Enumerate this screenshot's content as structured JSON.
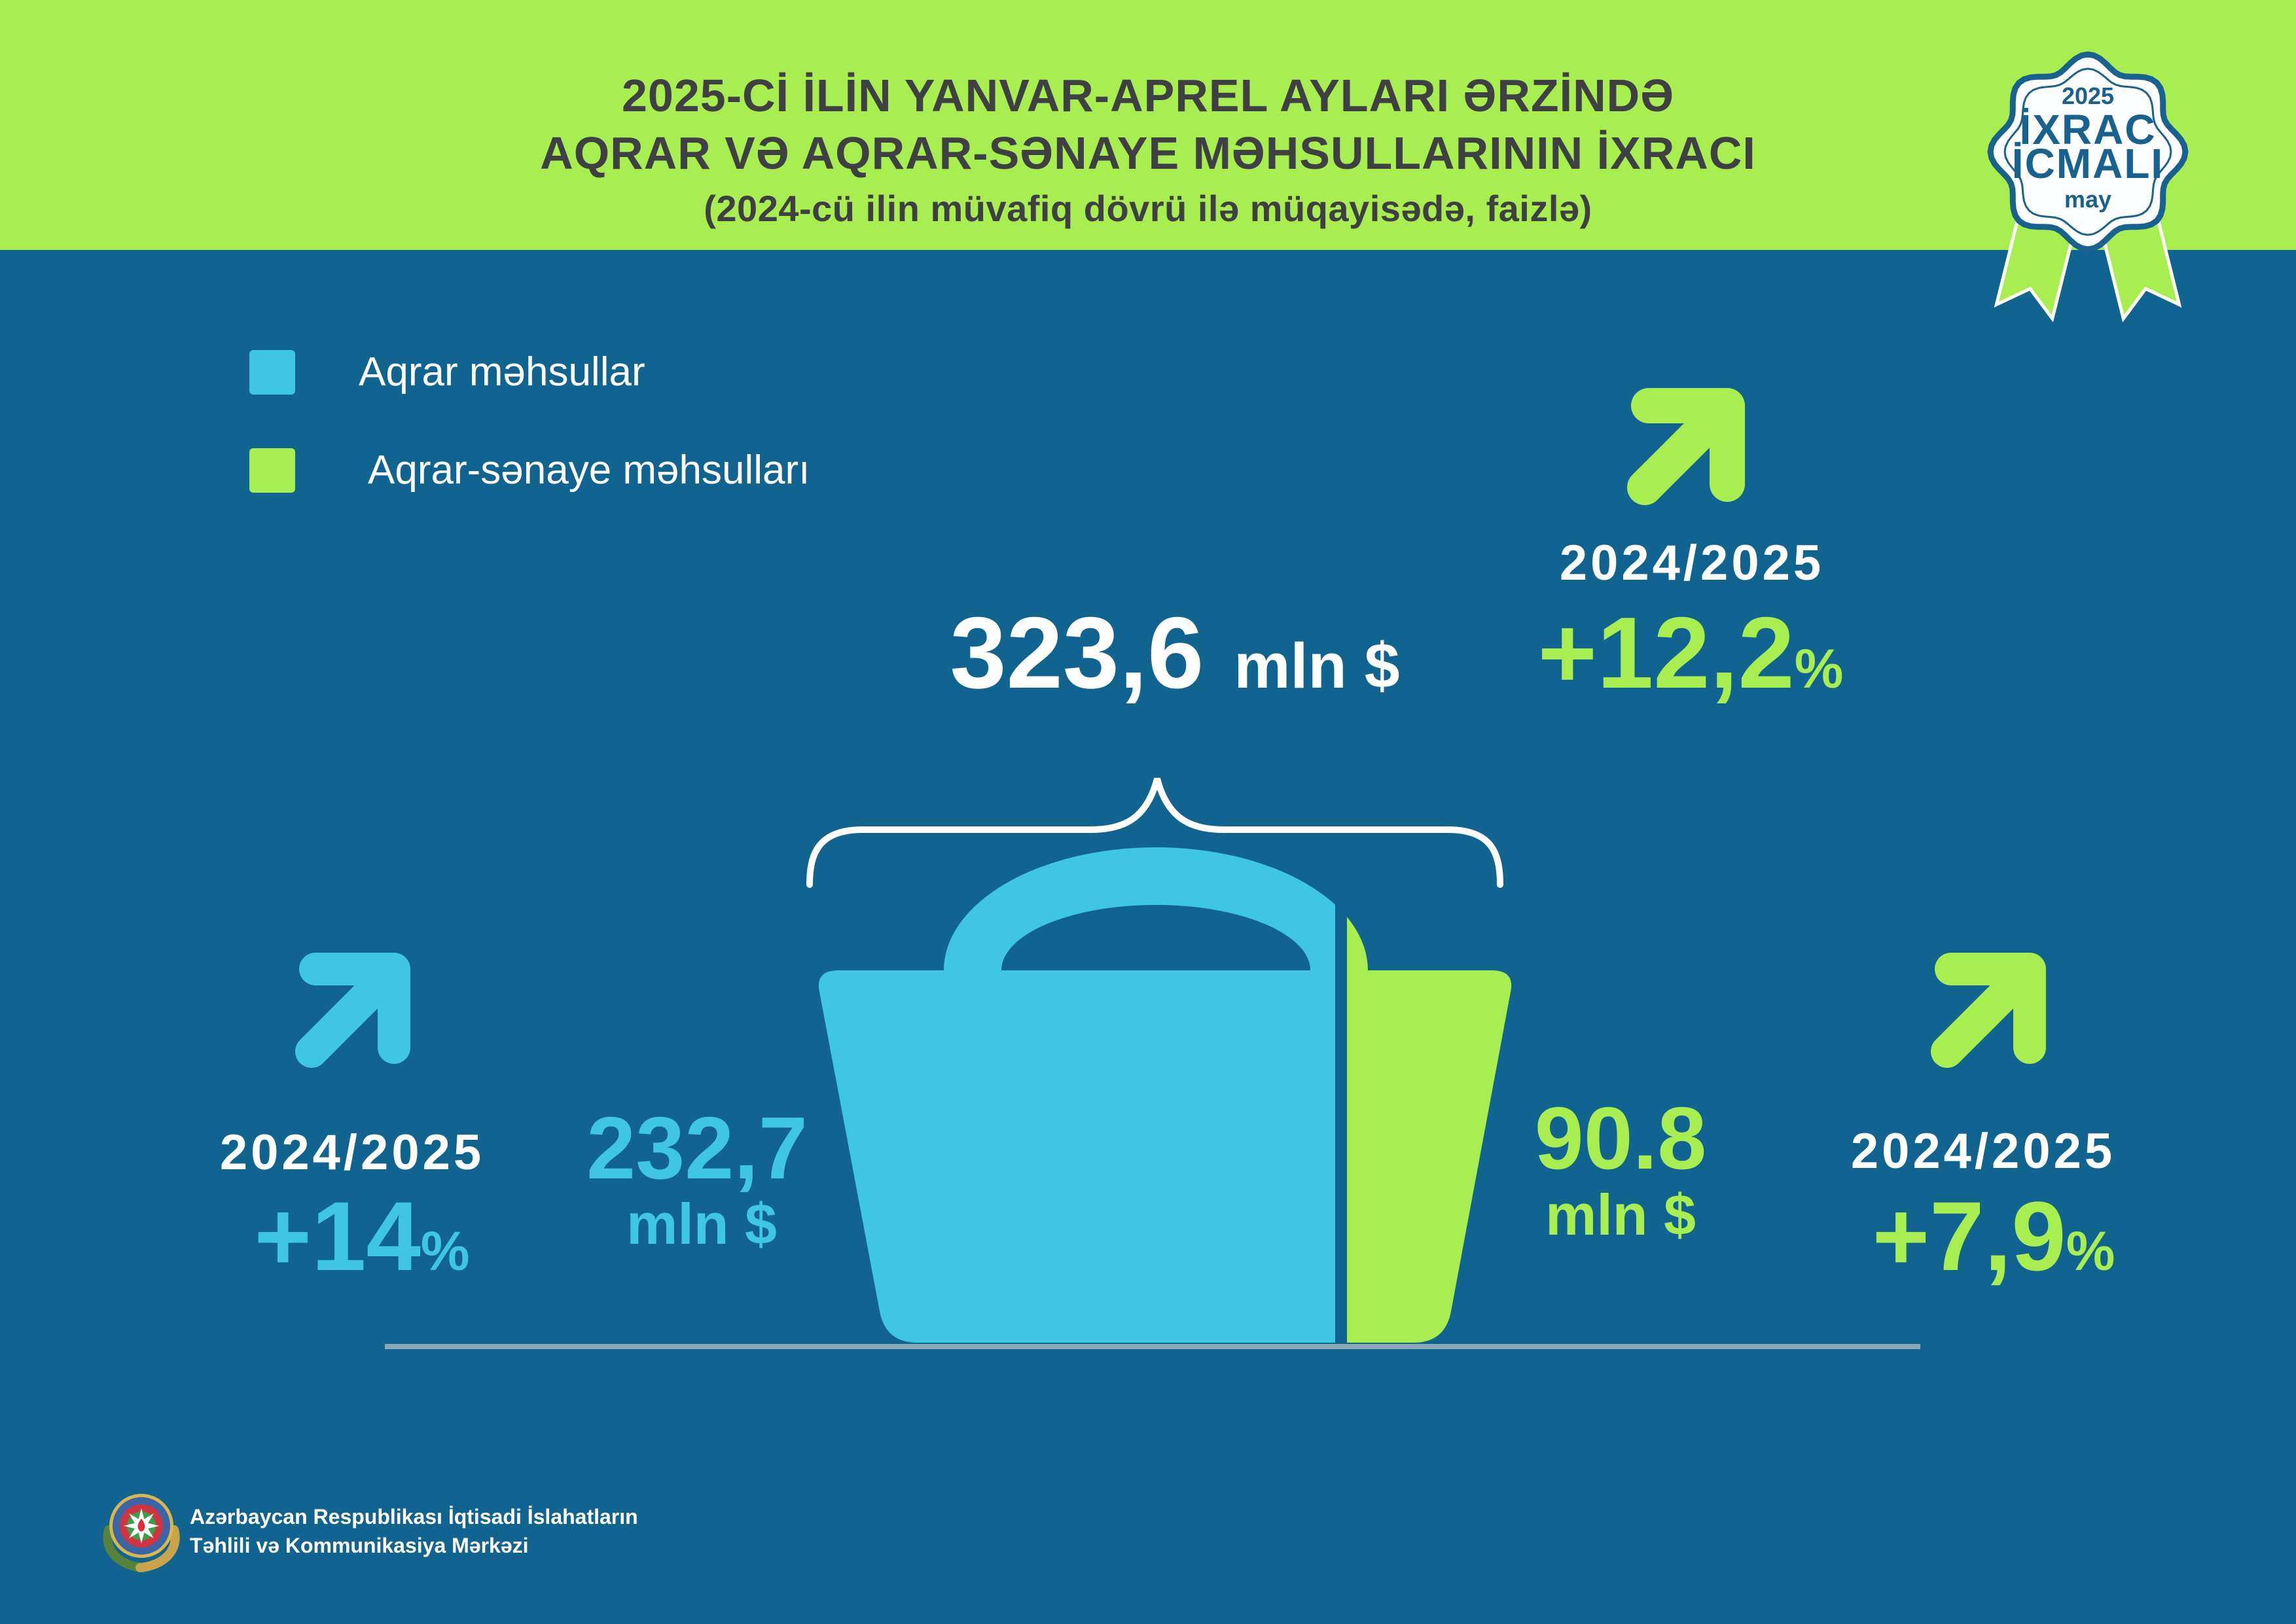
{
  "header": {
    "title_line1": "2025-Cİ İLİN YANVAR-APREL AYLARI ƏRZİNDƏ",
    "title_line2": "AQRAR VƏ AQRAR-SƏNAYE MƏHSULLARININ İXRACI",
    "title_line3": "(2024-cü ilin müvafiq dövrü ilə müqayisədə, faizlə)"
  },
  "badge": {
    "year": "2025",
    "line1": "İXRAC",
    "line2": "İCMALI",
    "month": "may"
  },
  "legend": {
    "items": [
      {
        "label": "Aqrar məhsullar",
        "color": "#3ec6e2"
      },
      {
        "label": "Aqrar-sənaye məhsulları",
        "color": "#a9ee50"
      }
    ]
  },
  "total": {
    "value": "323,6",
    "unit": "mln $",
    "period": "2024/2025",
    "change": "+12,2",
    "change_unit": "%"
  },
  "agrar": {
    "value": "232,7",
    "unit": "mln $",
    "period": "2024/2025",
    "change": "+14",
    "change_unit": "%"
  },
  "senaye": {
    "value": "90.8",
    "unit": "mln $",
    "period": "2024/2025",
    "change": "+7,9",
    "change_unit": "%"
  },
  "footer": {
    "line1": "Azərbaycan Respublikası İqtisadi İslahatların",
    "line2": "Təhlili və Kommunikasiya Mərkəzi"
  },
  "colors": {
    "background": "#10648f",
    "header_green": "#a9ee50",
    "accent_green": "#a9ee50",
    "accent_cyan": "#3ec6e2",
    "title_text": "#3e4044",
    "badge_teal": "#19618f",
    "baseline_gray": "#8ba8b6",
    "white": "#ffffff"
  },
  "chart_data": {
    "type": "bar",
    "title": "2025-ci ilin yanvar-aprel ayları ərzində aqrar və aqrar-sənaye məhsullarının ixracı",
    "subtitle": "(2024-cü ilin müvafiq dövrü ilə müqayisədə, faizlə)",
    "categories": [
      "Aqrar məhsullar",
      "Aqrar-sənaye məhsulları"
    ],
    "values": [
      232.7,
      90.8
    ],
    "unit": "mln $",
    "total_value": 323.6,
    "change_vs_previous_period_pct": [
      14,
      7.9
    ],
    "total_change_pct": 12.2,
    "comparison_period": "2024/2025",
    "legend_position": "top-left",
    "grid": false
  }
}
